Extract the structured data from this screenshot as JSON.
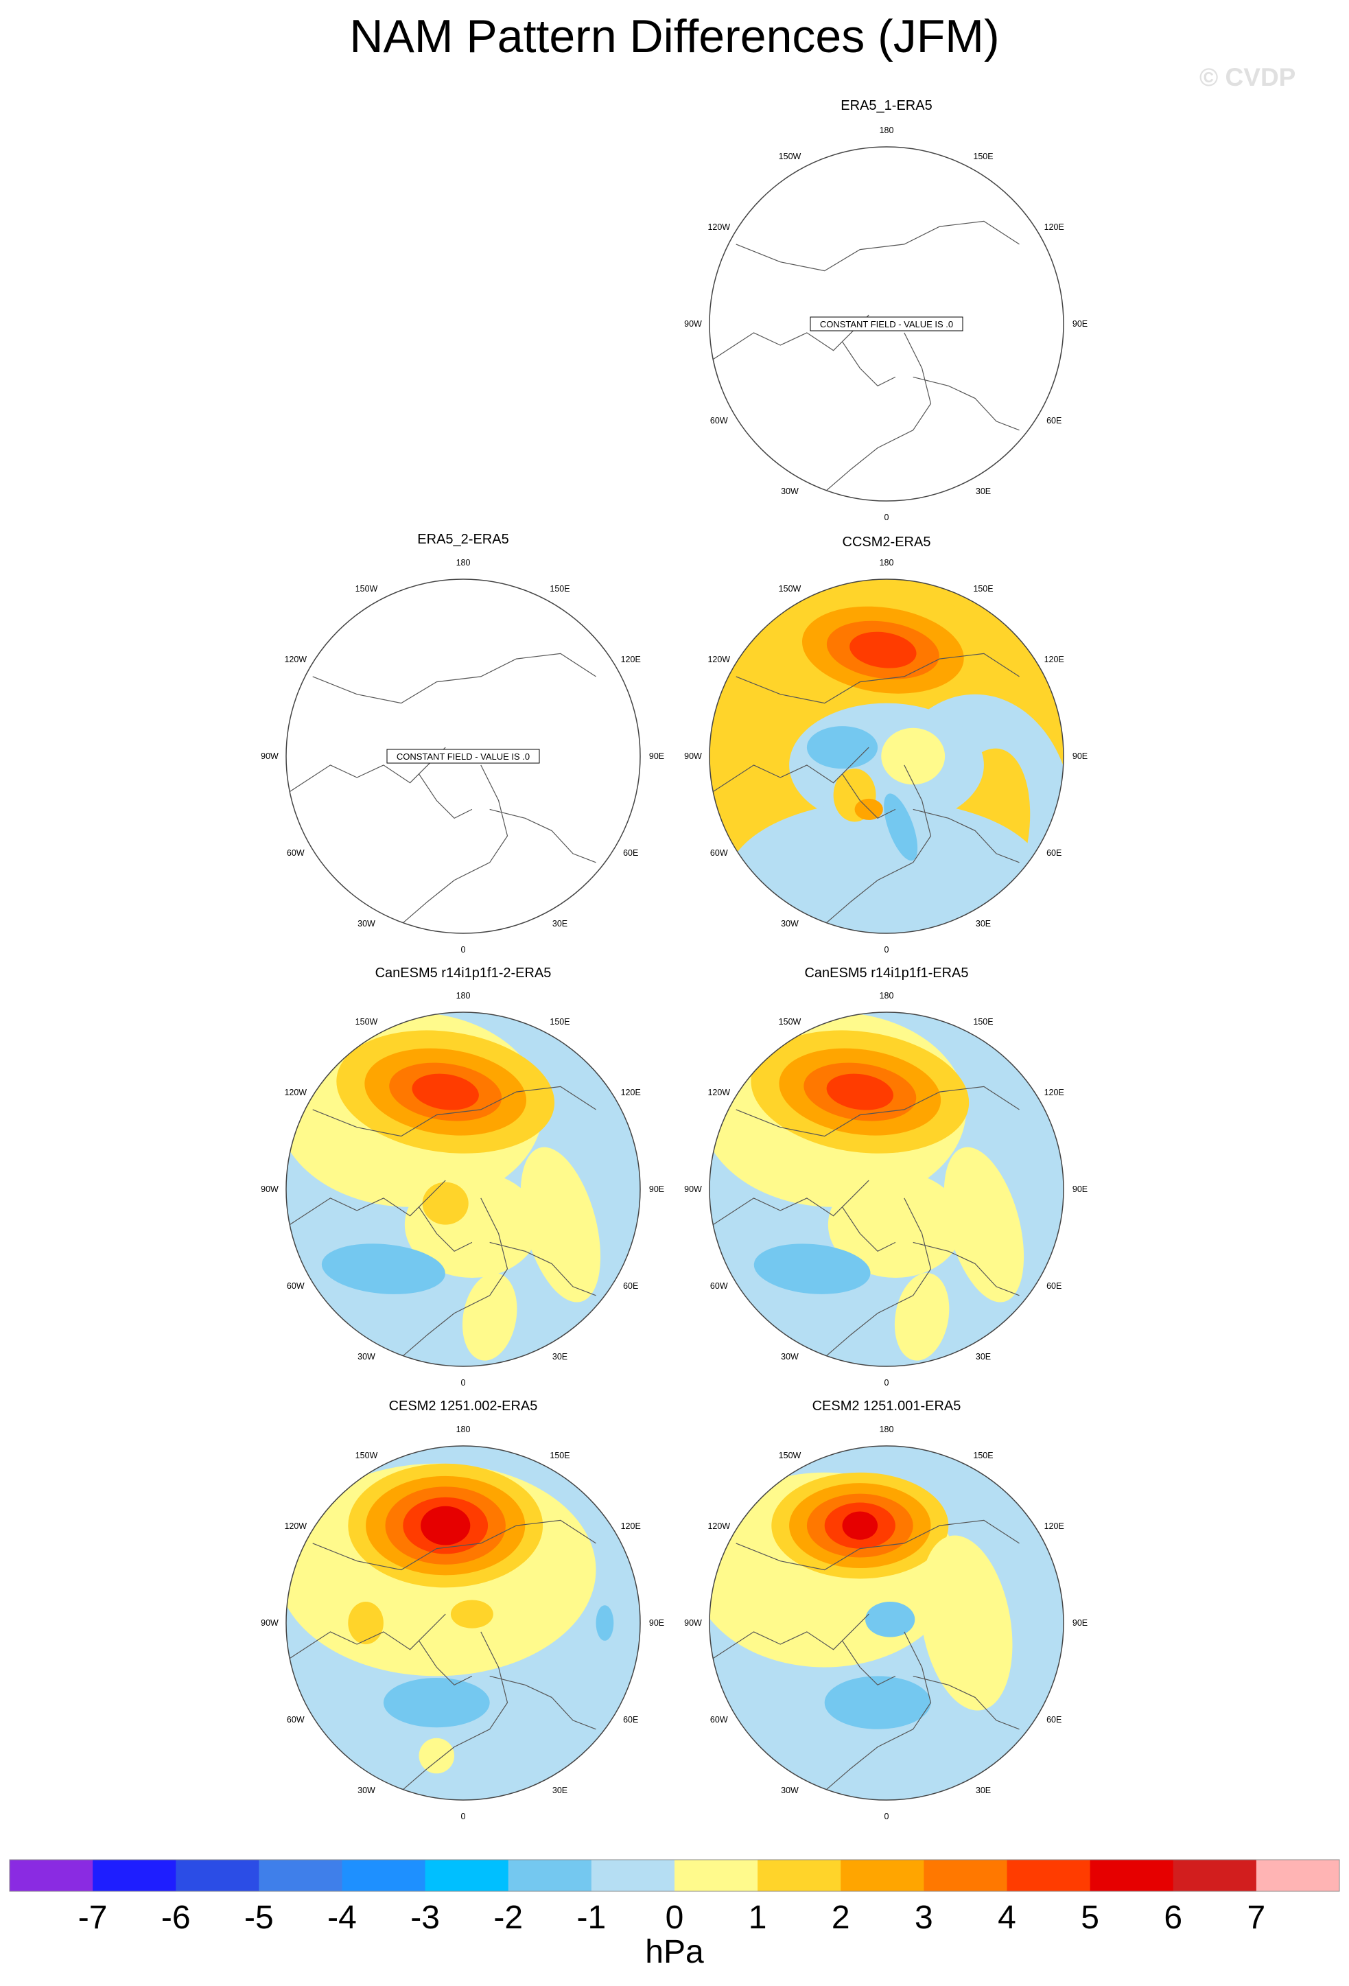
{
  "figure": {
    "title": "NAM Pattern Differences (JFM)",
    "watermark": "© CVDP",
    "units": "hPa"
  },
  "longitude_labels": [
    "180",
    "150E",
    "120E",
    "90E",
    "60E",
    "30E",
    "0",
    "30W",
    "60W",
    "90W",
    "120W",
    "150W"
  ],
  "constant_field_label": "CONSTANT FIELD - VALUE IS .0",
  "panels": [
    {
      "title": "ERA5_1-ERA5",
      "constant": true
    },
    {
      "title": "ERA5_2-ERA5",
      "constant": true
    },
    {
      "title": "CCSM2-ERA5",
      "constant": false
    },
    {
      "title": "CanESM5 r14i1p1f1-2-ERA5",
      "constant": false
    },
    {
      "title": "CanESM5 r14i1p1f1-ERA5",
      "constant": false
    },
    {
      "title": "CESM2 1251.002-ERA5",
      "constant": false
    },
    {
      "title": "CESM2 1251.001-ERA5",
      "constant": false
    }
  ],
  "chart_data": {
    "type": "heatmap",
    "projection": "north polar stereographic",
    "variable": "NAM pattern difference, JFM",
    "units": "hPa",
    "colorbar": {
      "ticks": [
        "-7",
        "-6",
        "-5",
        "-4",
        "-3",
        "-2",
        "-1",
        "0",
        "1",
        "2",
        "3",
        "4",
        "5",
        "6",
        "7"
      ],
      "colors": [
        "#8a2be2",
        "#1e1eff",
        "#2b4de6",
        "#3f7fea",
        "#1e90ff",
        "#00bfff",
        "#74c8f0",
        "#b5def3",
        "#fffa8c",
        "#ffd42a",
        "#ffa500",
        "#ff7800",
        "#ff3c00",
        "#e60000",
        "#d21e1e",
        "#ffb4b4"
      ]
    },
    "fields": [
      {
        "panel": "ERA5_1-ERA5",
        "constant_value": 0
      },
      {
        "panel": "ERA5_2-ERA5",
        "constant_value": 0
      },
      {
        "panel": "CCSM2-ERA5",
        "max_hPa": 5,
        "min_hPa": -3
      },
      {
        "panel": "CanESM5 r14i1p1f1-2-ERA5",
        "max_hPa": 5,
        "min_hPa": -2
      },
      {
        "panel": "CanESM5 r14i1p1f1-ERA5",
        "max_hPa": 5,
        "min_hPa": -2
      },
      {
        "panel": "CESM2 1251.002-ERA5",
        "max_hPa": 6,
        "min_hPa": -2
      },
      {
        "panel": "CESM2 1251.001-ERA5",
        "max_hPa": 6,
        "min_hPa": -2
      }
    ]
  }
}
